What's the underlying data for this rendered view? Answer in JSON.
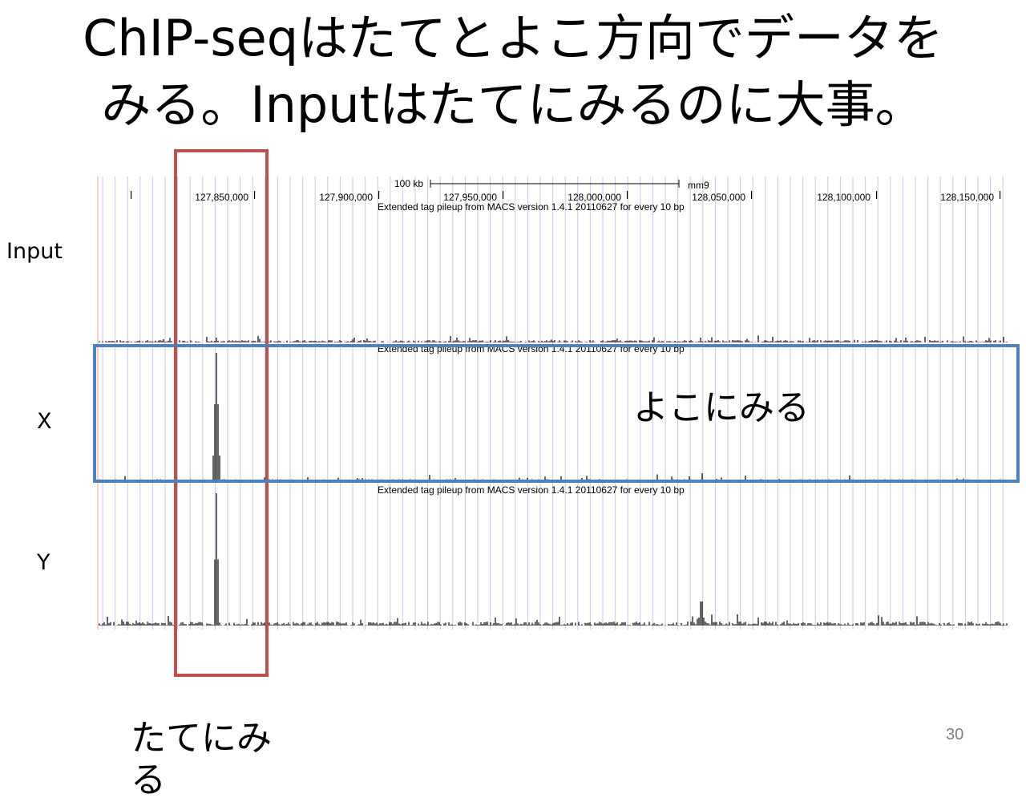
{
  "slide": {
    "title_line1": "ChIP-seqはたてとよこ方向でデータを",
    "title_line2": "みる。Inputはたてにみるのに大事。",
    "page_number": "30"
  },
  "tracks": {
    "labels": [
      "Input",
      "X",
      "Y"
    ]
  },
  "annotations": {
    "horizontal_note": "よこにみる",
    "vertical_note_line1": "たてにみ",
    "vertical_note_line2": "る",
    "red_box_color": "#c0504d",
    "blue_box_color": "#4f81bd"
  },
  "genome_browser": {
    "scale_label": "100 kb",
    "assembly": "mm9",
    "positions": [
      "127,850,000",
      "127,900,000",
      "127,950,000",
      "128,000,000",
      "128,050,000",
      "128,100,000",
      "128,150,000"
    ],
    "track_description": "Extended tag pileup from MACS version 1.4.1 20110627 for every 10 bp"
  }
}
